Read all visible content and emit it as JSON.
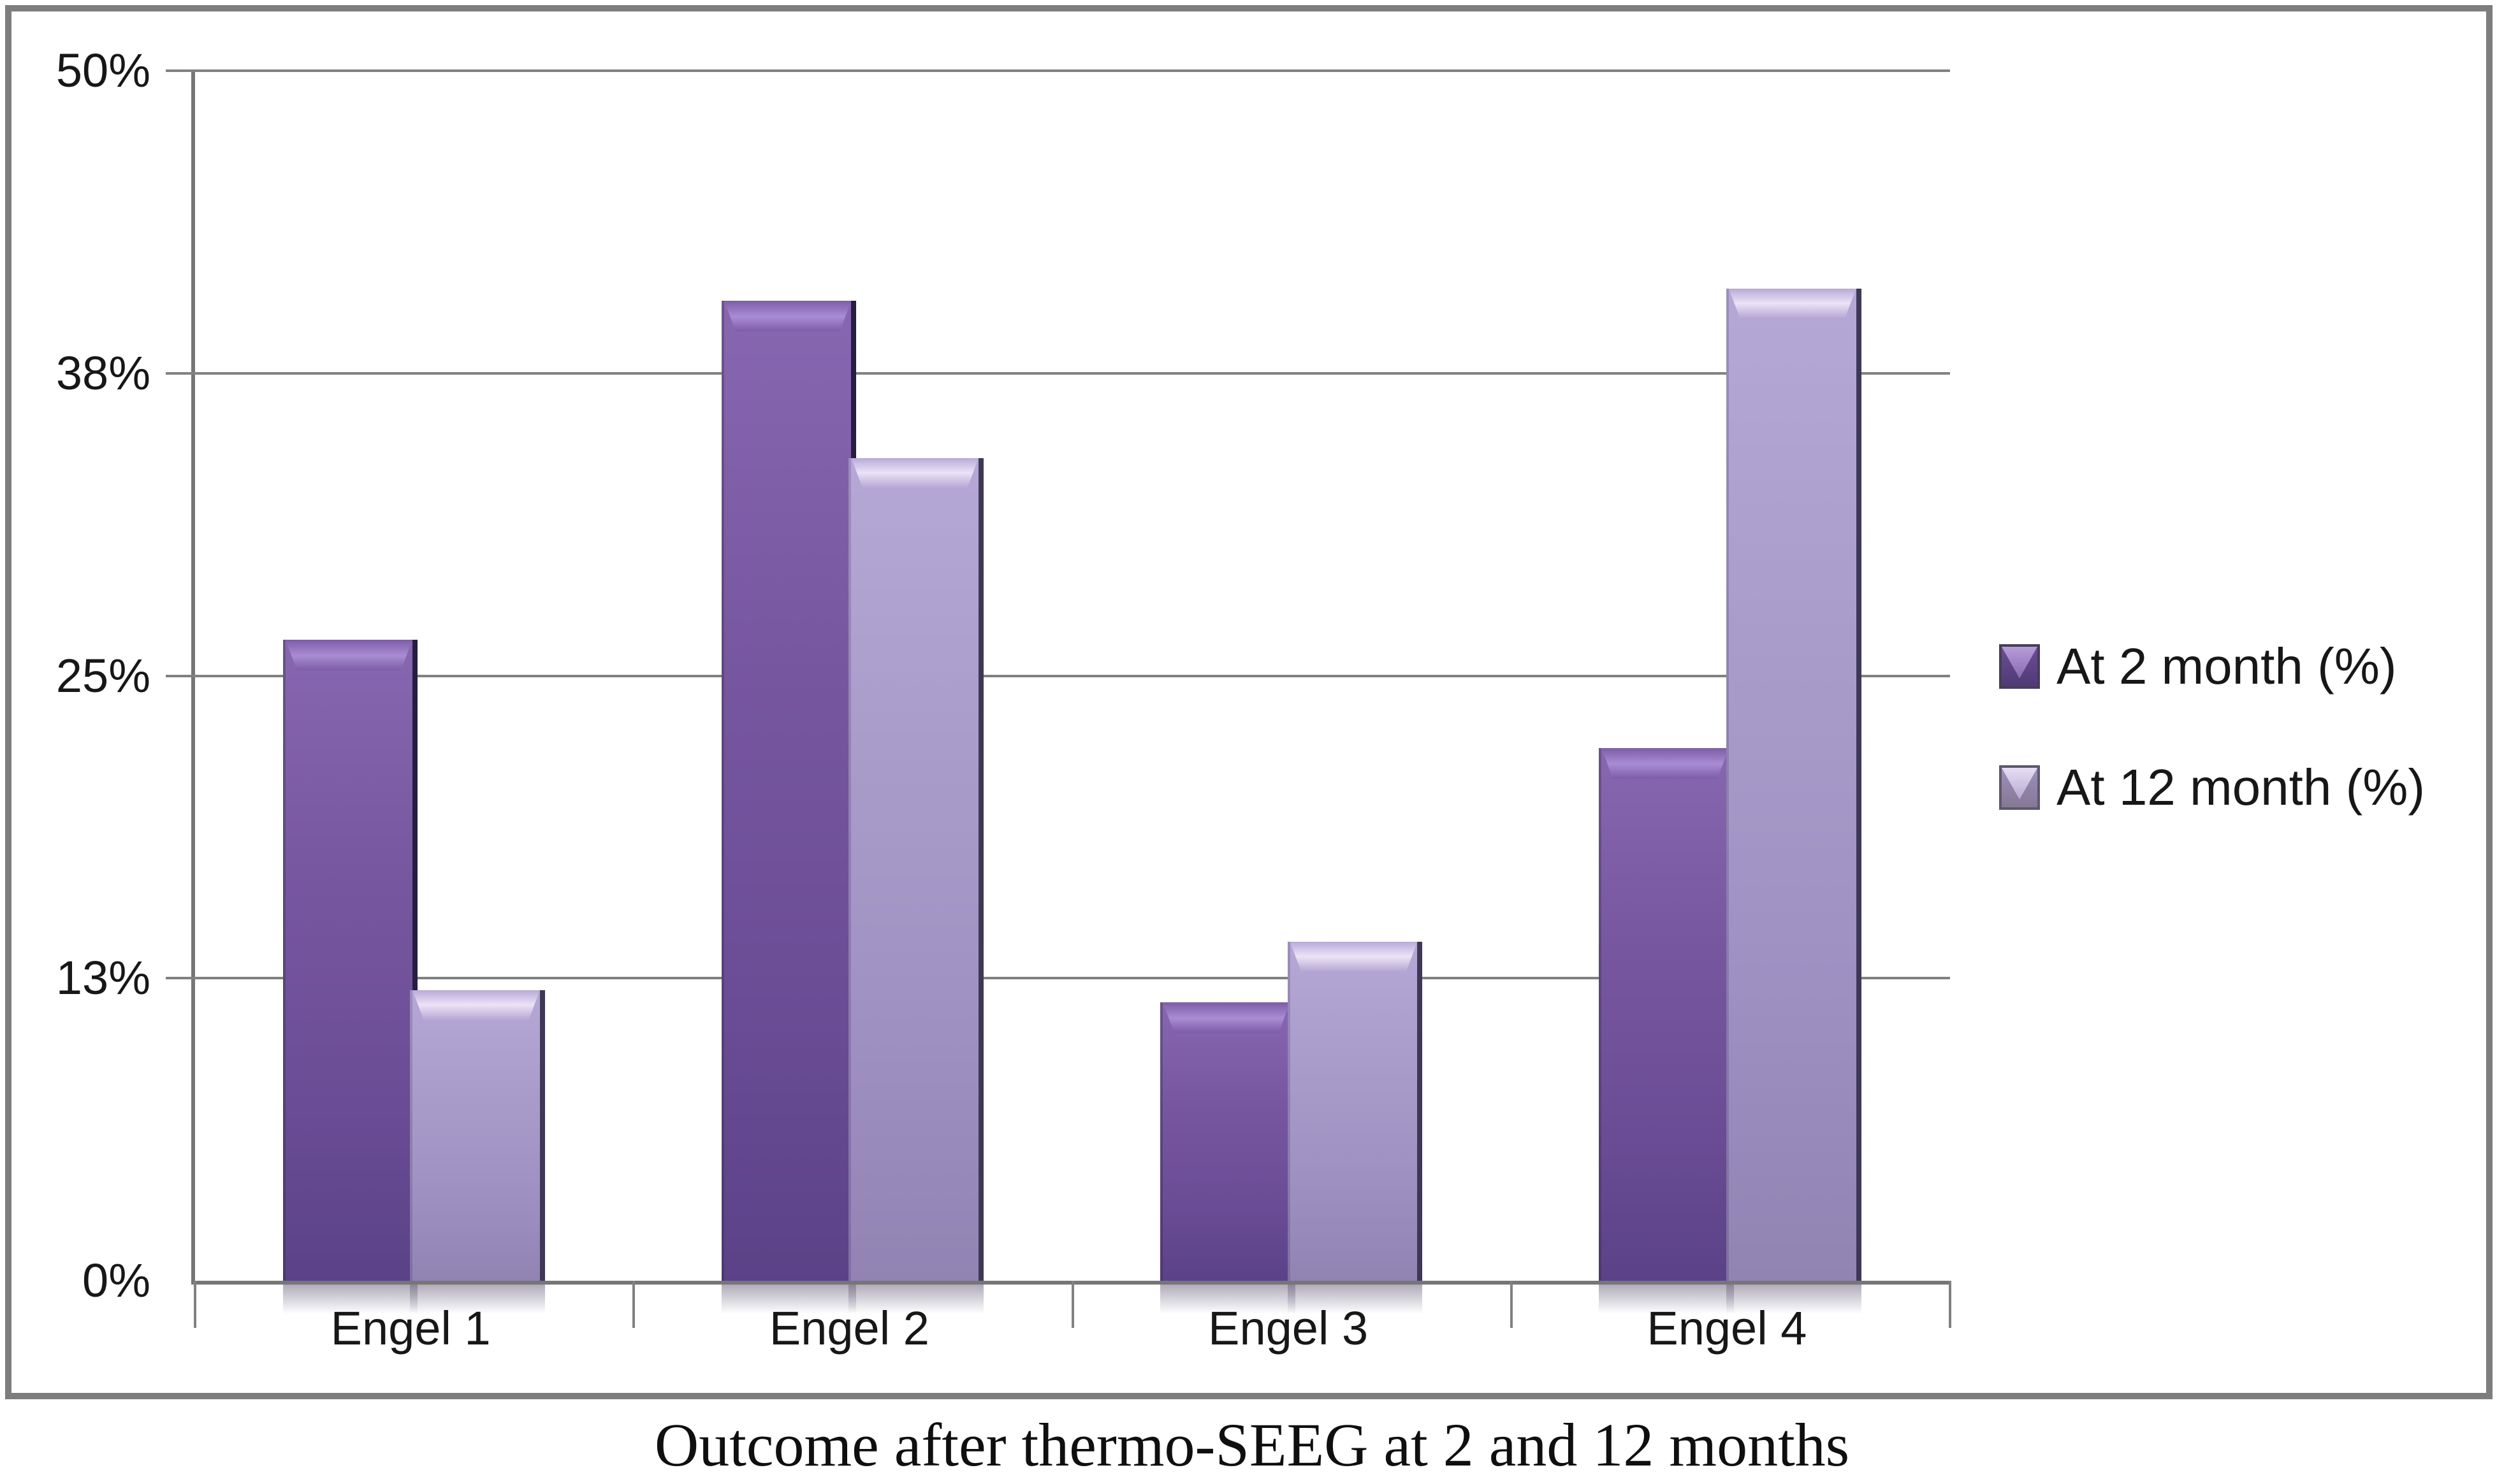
{
  "chart_data": {
    "type": "bar",
    "title": "Outcome after thermo-SEEG at 2 and 12 months",
    "categories": [
      "Engel 1",
      "Engel 2",
      "Engel 3",
      "Engel 4"
    ],
    "series": [
      {
        "name": "At 2 month (%)",
        "color": "#73559F",
        "values": [
          26.5,
          40.5,
          11.5,
          22
        ]
      },
      {
        "name": "At 12 month (%)",
        "color": "#A99BC9",
        "values": [
          12,
          34,
          14,
          41
        ]
      }
    ],
    "xlabel": "",
    "ylabel": "",
    "ylim": [
      0,
      50
    ],
    "yticks": [
      {
        "value": 0,
        "label": "0%"
      },
      {
        "value": 12.5,
        "label": "13%"
      },
      {
        "value": 25,
        "label": "25%"
      },
      {
        "value": 37.5,
        "label": "38%"
      },
      {
        "value": 50,
        "label": "50%"
      }
    ],
    "grid": true,
    "legend_position": "right",
    "colors": {
      "frame_border": "#7d7d7d",
      "gridline": "#818181",
      "text": "#171717"
    }
  }
}
